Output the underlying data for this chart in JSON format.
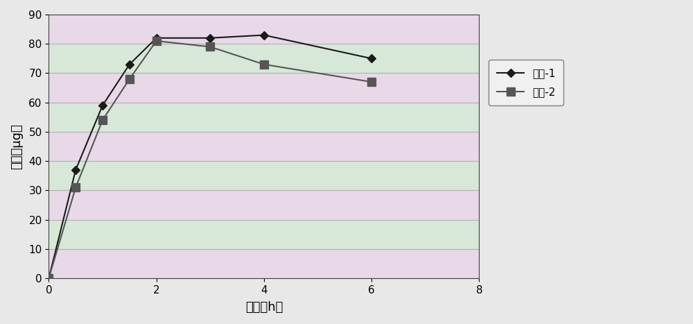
{
  "series1_x": [
    0,
    0.5,
    1,
    1.5,
    2,
    3,
    4,
    6
  ],
  "series1_y": [
    0,
    37,
    59,
    73,
    82,
    82,
    83,
    75
  ],
  "series2_x": [
    0,
    0.5,
    1,
    1.5,
    2,
    3,
    4,
    6
  ],
  "series2_y": [
    0,
    31,
    54,
    68,
    81,
    79,
    73,
    67
  ],
  "series1_label": "自制-1",
  "series2_label": "自制-2",
  "xlabel": "时间（h）",
  "ylabel": "药量（μg）",
  "xlim": [
    0,
    8
  ],
  "ylim": [
    0,
    90
  ],
  "xticks": [
    0,
    2,
    4,
    6,
    8
  ],
  "yticks": [
    0,
    10,
    20,
    30,
    40,
    50,
    60,
    70,
    80,
    90
  ],
  "line_color": "#1a1a1a",
  "series2_color": "#555555",
  "bg_color": "#e8e8e8",
  "fig_bg_color": "#e8e8e8",
  "band_color_pink": "#e8d8e8",
  "band_color_green": "#d8e8d8",
  "grid_line_color": "#b0b0b0",
  "axis_fontsize": 13,
  "tick_fontsize": 11,
  "legend_fontsize": 11
}
